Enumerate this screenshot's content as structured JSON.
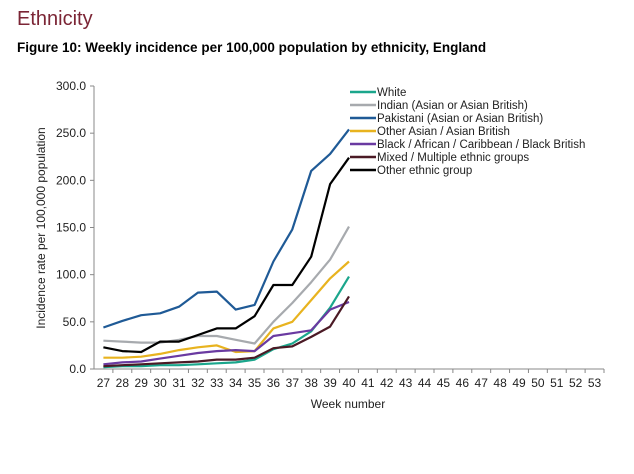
{
  "header": {
    "section_title": "Ethnicity",
    "figure_title": "Figure 10: Weekly incidence per 100,000 population by ethnicity, England"
  },
  "chart_data": {
    "type": "line",
    "title": "Figure 10: Weekly incidence per 100,000 population by ethnicity, England",
    "xlabel": "Week number",
    "ylabel": "Incidence rate per 100,000 population",
    "ylim": [
      0,
      300
    ],
    "yticks": [
      "0.0",
      "50.0",
      "100.0",
      "150.0",
      "200.0",
      "250.0",
      "300.0"
    ],
    "categories": [
      "27",
      "28",
      "29",
      "30",
      "31",
      "32",
      "33",
      "34",
      "35",
      "36",
      "37",
      "38",
      "39",
      "40",
      "41",
      "42",
      "43",
      "44",
      "45",
      "46",
      "47",
      "48",
      "49",
      "50",
      "51",
      "52",
      "53"
    ],
    "grid": false,
    "legend_position": "top-right",
    "series": [
      {
        "name": "White",
        "color": "#1ba68c",
        "values": [
          2,
          3,
          3,
          4,
          4,
          5,
          6,
          7,
          10,
          21,
          27,
          40,
          65,
          98
        ]
      },
      {
        "name": "Indian (Asian or Asian British)",
        "color": "#a7aaae",
        "values": [
          30,
          29,
          28,
          28,
          31,
          35,
          35,
          31,
          27,
          50,
          70,
          92,
          116,
          151
        ]
      },
      {
        "name": "Pakistani (Asian or Asian British)",
        "color": "#1f5a96",
        "values": [
          44,
          51,
          57,
          59,
          66,
          81,
          82,
          63,
          68,
          114,
          148,
          210,
          228,
          254
        ]
      },
      {
        "name": "Other Asian / Asian British",
        "color": "#e8b31f",
        "values": [
          12,
          12,
          13,
          16,
          20,
          23,
          25,
          18,
          19,
          43,
          50,
          73,
          96,
          114
        ]
      },
      {
        "name": "Black / African / Caribbean / Black British",
        "color": "#6a3aa1",
        "values": [
          5,
          7,
          8,
          11,
          14,
          17,
          19,
          20,
          19,
          35,
          38,
          41,
          63,
          71
        ]
      },
      {
        "name": "Mixed / Multiple ethnic groups",
        "color": "#4b1a25",
        "values": [
          3,
          4,
          5,
          6,
          7,
          8,
          10,
          10,
          12,
          22,
          24,
          34,
          45,
          77
        ]
      },
      {
        "name": "Other ethnic group",
        "color": "#000000",
        "values": [
          23,
          19,
          18,
          29,
          29,
          36,
          43,
          43,
          56,
          89,
          89,
          119,
          196,
          224
        ]
      }
    ]
  }
}
